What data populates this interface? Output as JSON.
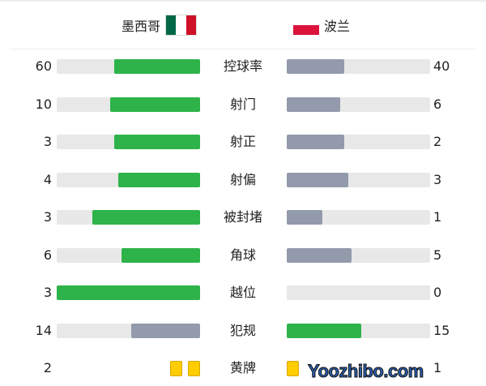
{
  "teams": {
    "home": {
      "name": "墨西哥",
      "flag": [
        "#006847",
        "#ffffff",
        "#ce1126"
      ]
    },
    "away": {
      "name": "波兰",
      "flag": "#dc143c"
    }
  },
  "colors": {
    "better": "#2db34a",
    "worse": "#939aac",
    "track": "#e8e8e8",
    "card": "#ffcc00"
  },
  "stats": [
    {
      "label": "控球率",
      "home": 60,
      "away": 40
    },
    {
      "label": "射门",
      "home": 10,
      "away": 6
    },
    {
      "label": "射正",
      "home": 3,
      "away": 2
    },
    {
      "label": "射偏",
      "home": 4,
      "away": 3
    },
    {
      "label": "被封堵",
      "home": 3,
      "away": 1
    },
    {
      "label": "角球",
      "home": 6,
      "away": 5
    },
    {
      "label": "越位",
      "home": 3,
      "away": 0
    },
    {
      "label": "犯规",
      "home": 14,
      "away": 15
    }
  ],
  "cards": {
    "label": "黄牌",
    "home": 2,
    "away": 1
  },
  "watermark": "Yoozhibo.com"
}
